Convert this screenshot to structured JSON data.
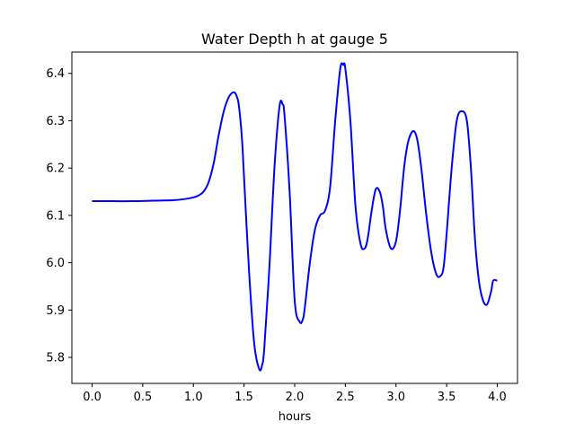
{
  "chart_data": {
    "type": "line",
    "title": "Water Depth h at gauge 5",
    "xlabel": "hours",
    "ylabel": "",
    "xlim": [
      -0.2,
      4.2
    ],
    "ylim": [
      5.745,
      6.445
    ],
    "xticks": [
      "0.0",
      "0.5",
      "1.0",
      "1.5",
      "2.0",
      "2.5",
      "3.0",
      "3.5",
      "4.0"
    ],
    "yticks": [
      "5.8",
      "5.9",
      "6.0",
      "6.1",
      "6.2",
      "6.3",
      "6.4"
    ],
    "grid": false,
    "legend": "none",
    "line_color": "#0000ff",
    "series": [
      {
        "x": [
          0.0,
          0.2,
          0.4,
          0.6,
          0.8,
          0.9,
          1.0,
          1.05,
          1.1,
          1.15,
          1.2,
          1.25,
          1.3,
          1.35,
          1.4,
          1.43,
          1.45,
          1.48,
          1.5,
          1.55,
          1.6,
          1.65,
          1.68,
          1.7,
          1.75,
          1.8,
          1.85,
          1.88,
          1.9,
          1.95,
          2.0,
          2.05,
          2.08,
          2.1,
          2.15,
          2.2,
          2.25,
          2.3,
          2.35,
          2.4,
          2.45,
          2.48,
          2.5,
          2.55,
          2.6,
          2.65,
          2.69,
          2.72,
          2.76,
          2.8,
          2.84,
          2.87,
          2.9,
          2.95,
          3.0,
          3.04,
          3.08,
          3.12,
          3.17,
          3.21,
          3.25,
          3.3,
          3.35,
          3.4,
          3.44,
          3.47,
          3.5,
          3.55,
          3.6,
          3.65,
          3.7,
          3.74,
          3.78,
          3.82,
          3.86,
          3.9,
          3.94,
          3.96,
          4.0
        ],
        "y": [
          6.13,
          6.13,
          6.13,
          6.131,
          6.132,
          6.134,
          6.138,
          6.142,
          6.15,
          6.17,
          6.21,
          6.27,
          6.32,
          6.35,
          6.36,
          6.35,
          6.33,
          6.26,
          6.18,
          5.98,
          5.83,
          5.775,
          5.785,
          5.82,
          5.99,
          6.2,
          6.33,
          6.335,
          6.31,
          6.15,
          5.92,
          5.875,
          5.88,
          5.905,
          6.0,
          6.07,
          6.1,
          6.11,
          6.16,
          6.3,
          6.41,
          6.418,
          6.41,
          6.3,
          6.12,
          6.04,
          6.03,
          6.05,
          6.11,
          6.155,
          6.15,
          6.12,
          6.07,
          6.03,
          6.045,
          6.11,
          6.2,
          6.255,
          6.278,
          6.26,
          6.2,
          6.1,
          6.02,
          5.975,
          5.972,
          5.99,
          6.06,
          6.2,
          6.3,
          6.32,
          6.3,
          6.2,
          6.05,
          5.96,
          5.92,
          5.912,
          5.94,
          5.962,
          5.962
        ]
      }
    ]
  }
}
